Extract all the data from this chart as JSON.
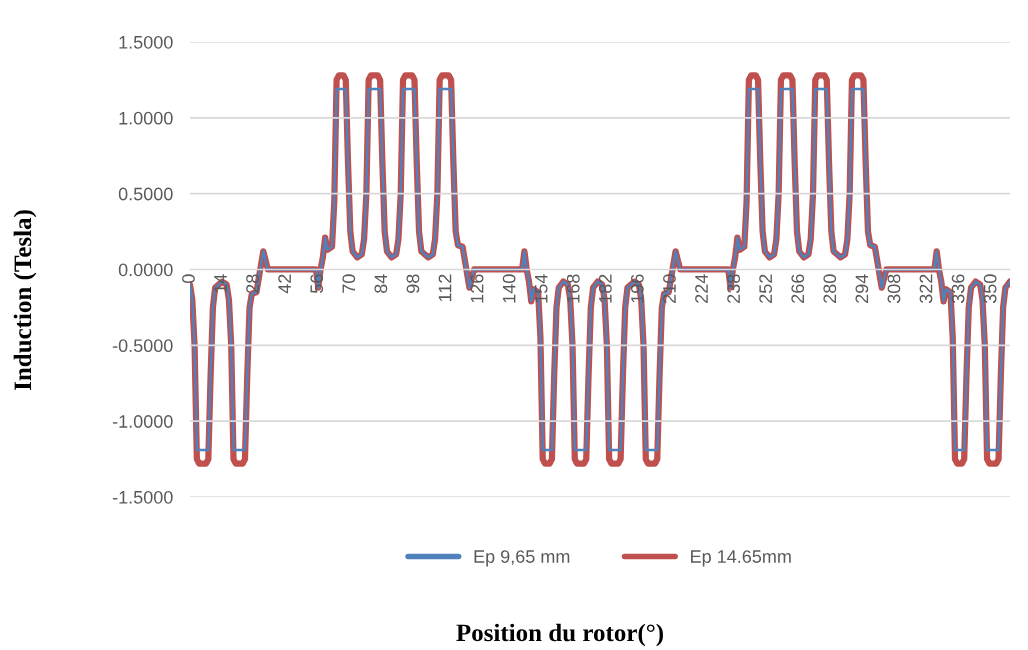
{
  "chart_data": {
    "type": "line",
    "xlabel": "Position du rotor(°)",
    "ylabel": "Induction (Tesla)",
    "x": [
      0,
      1,
      2,
      3,
      4,
      7,
      8,
      9,
      10,
      11,
      14,
      16,
      17,
      18,
      19,
      20,
      23,
      24,
      25,
      26,
      27,
      29,
      32,
      34,
      54,
      55,
      56,
      57,
      58,
      59,
      60,
      62,
      63,
      64,
      65,
      67,
      68,
      69,
      70,
      71,
      73,
      75,
      76,
      77,
      78,
      79,
      82,
      83,
      84,
      85,
      86,
      88,
      90,
      91,
      92,
      93,
      94,
      97,
      98,
      99,
      100,
      101,
      104,
      106,
      107,
      108,
      109,
      110,
      113,
      114,
      115,
      116,
      117,
      119,
      122,
      124,
      144,
      145,
      146,
      147,
      148,
      149,
      150,
      152,
      153,
      154,
      155,
      157,
      158,
      159,
      160,
      161,
      163,
      165,
      166,
      167,
      168,
      169,
      172,
      173,
      174,
      175,
      176,
      178,
      180,
      181,
      182,
      183,
      184,
      187,
      188,
      189,
      190,
      191,
      194,
      196,
      197,
      198,
      199,
      200,
      203,
      204,
      205,
      206,
      207,
      209,
      212,
      214,
      234,
      235,
      236,
      237,
      238,
      239,
      240,
      242,
      243,
      244,
      245,
      247,
      248,
      249,
      250,
      251,
      253,
      255,
      256,
      257,
      258,
      259,
      262,
      263,
      264,
      265,
      266,
      268,
      270,
      271,
      272,
      273,
      274,
      277,
      278,
      279,
      280,
      281,
      284,
      286,
      287,
      288,
      289,
      290,
      293,
      294,
      295,
      296,
      297,
      299,
      302,
      304,
      324,
      325,
      326,
      327,
      328,
      329,
      330,
      332,
      333,
      334,
      335,
      337,
      338,
      339,
      340,
      341,
      343,
      345,
      346,
      347,
      348,
      349,
      352,
      353,
      354,
      355,
      356,
      358
    ],
    "xlim": [
      0,
      358
    ],
    "xticks": [
      0,
      14,
      28,
      42,
      56,
      70,
      84,
      98,
      112,
      126,
      140,
      154,
      168,
      182,
      196,
      210,
      224,
      238,
      252,
      266,
      280,
      294,
      308,
      322,
      336,
      350
    ],
    "ylim": [
      -1.5,
      1.5
    ],
    "yticks": [
      {
        "value": -1.5,
        "label": "-1.5000"
      },
      {
        "value": -1.0,
        "label": "-1.0000"
      },
      {
        "value": -0.5,
        "label": "-0.5000"
      },
      {
        "value": 0,
        "label": "0.0000"
      },
      {
        "value": 0.5,
        "label": "0.5000"
      },
      {
        "value": 1.0,
        "label": "1.0000"
      },
      {
        "value": 1.5,
        "label": "1.5000"
      }
    ],
    "grid": "y",
    "legend": "bottom",
    "marker": "none",
    "line_style": "solid",
    "series": [
      {
        "name": "Ep 9,65 mm",
        "color": "#4f81bd",
        "values": [
          -0.1,
          -0.2,
          -0.5,
          -1.19,
          -1.19,
          -1.19,
          -1.19,
          -0.7,
          -0.25,
          -0.12,
          -0.08,
          -0.1,
          -0.2,
          -0.5,
          -1.19,
          -1.19,
          -1.19,
          -1.19,
          -0.7,
          -0.25,
          -0.16,
          -0.15,
          0.12,
          0,
          0,
          0,
          -0.12,
          0,
          0.08,
          0.21,
          0.13,
          0.15,
          0.45,
          1.19,
          1.19,
          1.19,
          1.19,
          0.7,
          0.25,
          0.12,
          0.08,
          0.1,
          0.2,
          0.5,
          1.19,
          1.19,
          1.19,
          1.19,
          0.7,
          0.25,
          0.12,
          0.08,
          0.1,
          0.2,
          0.5,
          1.19,
          1.19,
          1.19,
          1.19,
          0.7,
          0.25,
          0.12,
          0.08,
          0.1,
          0.2,
          0.5,
          1.19,
          1.19,
          1.19,
          1.19,
          0.7,
          0.25,
          0.16,
          0.15,
          -0.12,
          0,
          0,
          0,
          0.12,
          0,
          -0.08,
          -0.21,
          -0.13,
          -0.15,
          -0.45,
          -1.19,
          -1.19,
          -1.19,
          -1.19,
          -0.7,
          -0.25,
          -0.12,
          -0.08,
          -0.1,
          -0.2,
          -0.5,
          -1.19,
          -1.19,
          -1.19,
          -1.19,
          -0.7,
          -0.25,
          -0.12,
          -0.08,
          -0.1,
          -0.2,
          -0.5,
          -1.19,
          -1.19,
          -1.19,
          -1.19,
          -0.7,
          -0.25,
          -0.12,
          -0.08,
          -0.1,
          -0.2,
          -0.5,
          -1.19,
          -1.19,
          -1.19,
          -1.19,
          -0.7,
          -0.25,
          -0.16,
          -0.15,
          0.12,
          0,
          0,
          0,
          -0.12,
          0,
          0.08,
          0.21,
          0.13,
          0.15,
          0.45,
          1.19,
          1.19,
          1.19,
          1.19,
          0.7,
          0.25,
          0.12,
          0.08,
          0.1,
          0.2,
          0.5,
          1.19,
          1.19,
          1.19,
          1.19,
          0.7,
          0.25,
          0.12,
          0.08,
          0.1,
          0.2,
          0.5,
          1.19,
          1.19,
          1.19,
          1.19,
          0.7,
          0.25,
          0.12,
          0.08,
          0.1,
          0.2,
          0.5,
          1.19,
          1.19,
          1.19,
          1.19,
          0.7,
          0.25,
          0.16,
          0.15,
          -0.12,
          0,
          0,
          0,
          0.12,
          0,
          -0.08,
          -0.21,
          -0.13,
          -0.15,
          -0.45,
          -1.19,
          -1.19,
          -1.19,
          -1.19,
          -0.7,
          -0.25,
          -0.12,
          -0.08,
          -0.1,
          -0.2,
          -0.5,
          -1.19,
          -1.19,
          -1.19,
          -1.19,
          -0.7,
          -0.25,
          -0.12,
          -0.08
        ]
      },
      {
        "name": "Ep 14.65mm",
        "color": "#c0504d",
        "values": [
          -0.1,
          -0.2,
          -0.5,
          -1.25,
          -1.28,
          -1.28,
          -1.25,
          -0.7,
          -0.25,
          -0.12,
          -0.08,
          -0.1,
          -0.2,
          -0.5,
          -1.25,
          -1.28,
          -1.28,
          -1.25,
          -0.7,
          -0.25,
          -0.16,
          -0.15,
          0.12,
          0,
          0,
          0,
          -0.12,
          0,
          0.08,
          0.21,
          0.13,
          0.15,
          0.45,
          1.25,
          1.28,
          1.28,
          1.25,
          0.7,
          0.25,
          0.12,
          0.08,
          0.1,
          0.2,
          0.5,
          1.25,
          1.28,
          1.28,
          1.25,
          0.7,
          0.25,
          0.12,
          0.08,
          0.1,
          0.2,
          0.5,
          1.25,
          1.28,
          1.28,
          1.25,
          0.7,
          0.25,
          0.12,
          0.08,
          0.1,
          0.2,
          0.5,
          1.25,
          1.28,
          1.28,
          1.25,
          0.7,
          0.25,
          0.16,
          0.15,
          -0.12,
          0,
          0,
          0,
          0.12,
          0,
          -0.08,
          -0.21,
          -0.13,
          -0.15,
          -0.45,
          -1.25,
          -1.28,
          -1.28,
          -1.25,
          -0.7,
          -0.25,
          -0.12,
          -0.08,
          -0.1,
          -0.2,
          -0.5,
          -1.25,
          -1.28,
          -1.28,
          -1.25,
          -0.7,
          -0.25,
          -0.12,
          -0.08,
          -0.1,
          -0.2,
          -0.5,
          -1.25,
          -1.28,
          -1.28,
          -1.25,
          -0.7,
          -0.25,
          -0.12,
          -0.08,
          -0.1,
          -0.2,
          -0.5,
          -1.25,
          -1.28,
          -1.28,
          -1.25,
          -0.7,
          -0.25,
          -0.16,
          -0.15,
          0.12,
          0,
          0,
          0,
          -0.12,
          0,
          0.08,
          0.21,
          0.13,
          0.15,
          0.45,
          1.25,
          1.28,
          1.28,
          1.25,
          0.7,
          0.25,
          0.12,
          0.08,
          0.1,
          0.2,
          0.5,
          1.25,
          1.28,
          1.28,
          1.25,
          0.7,
          0.25,
          0.12,
          0.08,
          0.1,
          0.2,
          0.5,
          1.25,
          1.28,
          1.28,
          1.25,
          0.7,
          0.25,
          0.12,
          0.08,
          0.1,
          0.2,
          0.5,
          1.25,
          1.28,
          1.28,
          1.25,
          0.7,
          0.25,
          0.16,
          0.15,
          -0.12,
          0,
          0,
          0,
          0.12,
          0,
          -0.08,
          -0.21,
          -0.13,
          -0.15,
          -0.45,
          -1.25,
          -1.28,
          -1.28,
          -1.25,
          -0.7,
          -0.25,
          -0.12,
          -0.08,
          -0.1,
          -0.2,
          -0.5,
          -1.25,
          -1.28,
          -1.28,
          -1.25,
          -0.7,
          -0.25,
          -0.12,
          -0.08
        ]
      }
    ]
  }
}
